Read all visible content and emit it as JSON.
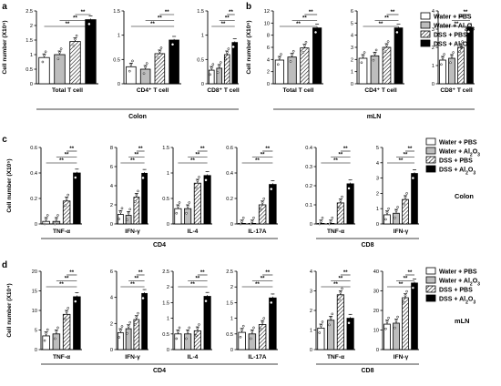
{
  "legend": [
    "Water + PBS",
    "Water + Al2O3",
    "DSS + PBS",
    "DSS + Al2O3"
  ],
  "chart_data": [
    {
      "panel": "a",
      "type": "bar",
      "group_label": "Colon",
      "ylabel": "Cell number (X10⁶)",
      "charts": [
        {
          "title": "",
          "xlabel": "Total T cell",
          "ylim": [
            0,
            2.5
          ],
          "ticks": [
            0.0,
            0.5,
            1.0,
            1.5,
            2.0,
            2.5
          ],
          "series": [
            {
              "values": [
                [
                  0.9,
                  1.0,
                  1.45,
                  2.2
                ]
              ]
            }
          ]
        },
        {
          "title": "",
          "xlabel": "CD4⁺ T cell",
          "ylim": [
            0,
            1.5
          ],
          "ticks": [
            0.0,
            0.5,
            1.0,
            1.5
          ],
          "series": [
            {
              "values": [
                [
                  0.35,
                  0.3,
                  0.62,
                  0.9
                ]
              ]
            }
          ]
        },
        {
          "title": "",
          "xlabel": "CD8⁺ T cell",
          "ylim": [
            0,
            1.5
          ],
          "ticks": [
            0.0,
            0.5,
            1.0,
            1.5
          ],
          "series": [
            {
              "values": [
                [
                  0.28,
                  0.32,
                  0.6,
                  0.85
                ]
              ]
            }
          ]
        }
      ]
    },
    {
      "panel": "b",
      "type": "bar",
      "group_label": "mLN",
      "ylabel": "Cell number (X10⁶)",
      "charts": [
        {
          "title": "",
          "xlabel": "Total T cell",
          "ylim": [
            0,
            12
          ],
          "ticks": [
            0,
            2,
            4,
            6,
            8,
            10,
            12
          ],
          "series": [
            {
              "values": [
                [
                  3.9,
                  4.4,
                  5.9,
                  9.2
                ]
              ]
            }
          ]
        },
        {
          "title": "",
          "xlabel": "CD4⁺ T cell",
          "ylim": [
            0,
            6
          ],
          "ticks": [
            0,
            1,
            2,
            3,
            4,
            5,
            6
          ],
          "series": [
            {
              "values": [
                [
                  2.1,
                  2.3,
                  3.0,
                  4.6
                ]
              ]
            }
          ]
        },
        {
          "title": "",
          "xlabel": "CD8⁺ T cell",
          "ylim": [
            0,
            4
          ],
          "ticks": [
            0,
            1,
            2,
            3,
            4
          ],
          "series": [
            {
              "values": [
                [
                  1.3,
                  1.4,
                  2.0,
                  3.1
                ]
              ]
            }
          ]
        }
      ]
    },
    {
      "panel": "c",
      "type": "bar",
      "group_label": "Colon",
      "ylabel": "Cell number (X10⁵)",
      "groups": [
        {
          "label": "CD4",
          "charts": [
            0,
            3
          ]
        },
        {
          "label": "CD8",
          "charts": [
            4,
            5
          ]
        }
      ],
      "charts": [
        {
          "title": "TNF-α",
          "xlabel": "",
          "ylim": [
            0,
            0.6
          ],
          "ticks": [
            0.0,
            0.2,
            0.4,
            0.6
          ],
          "series": [
            {
              "values": [
                [
                  0.02,
                  0.02,
                  0.18,
                  0.4
                ]
              ]
            }
          ]
        },
        {
          "title": "IFN-γ",
          "xlabel": "",
          "ylim": [
            0,
            8
          ],
          "ticks": [
            0,
            2,
            4,
            6,
            8
          ],
          "series": [
            {
              "values": [
                [
                  1.0,
                  0.9,
                  2.8,
                  5.3
                ]
              ]
            }
          ]
        },
        {
          "title": "IL-4",
          "xlabel": "",
          "ylim": [
            0,
            1.5
          ],
          "ticks": [
            0.0,
            0.5,
            1.0,
            1.5
          ],
          "series": [
            {
              "values": [
                [
                  0.3,
                  0.3,
                  0.8,
                  0.95
                ]
              ]
            }
          ]
        },
        {
          "title": "IL-17A",
          "xlabel": "",
          "ylim": [
            0,
            0.6
          ],
          "ticks": [
            0.0,
            0.2,
            0.4,
            0.6
          ],
          "series": [
            {
              "values": [
                [
                  0.0,
                  0.0,
                  0.15,
                  0.31
                ]
              ]
            }
          ]
        },
        {
          "title": "TNF-α",
          "xlabel": "",
          "ylim": [
            0,
            0.4
          ],
          "ticks": [
            0.0,
            0.1,
            0.2,
            0.3,
            0.4
          ],
          "series": [
            {
              "values": [
                [
                  0.0,
                  0.0,
                  0.11,
                  0.21
                ]
              ]
            }
          ]
        },
        {
          "title": "IFN-γ",
          "xlabel": "",
          "ylim": [
            0,
            5
          ],
          "ticks": [
            0,
            1,
            2,
            3,
            4,
            5
          ],
          "series": [
            {
              "values": [
                [
                  0.6,
                  0.7,
                  1.6,
                  3.3
                ]
              ]
            }
          ]
        }
      ]
    },
    {
      "panel": "d",
      "type": "bar",
      "group_label": "mLN",
      "ylabel": "Cell number (X10⁴)",
      "groups": [
        {
          "label": "CD4",
          "charts": [
            0,
            3
          ]
        },
        {
          "label": "CD8",
          "charts": [
            4,
            5
          ]
        }
      ],
      "charts": [
        {
          "title": "TNF-α",
          "xlabel": "",
          "ylim": [
            0,
            20
          ],
          "ticks": [
            0,
            5,
            10,
            15,
            20
          ],
          "series": [
            {
              "values": [
                [
                  3.5,
                  4.0,
                  9.0,
                  13.5
                ]
              ]
            }
          ]
        },
        {
          "title": "IFN-γ",
          "xlabel": "",
          "ylim": [
            0,
            6
          ],
          "ticks": [
            0,
            2,
            4,
            6
          ],
          "series": [
            {
              "values": [
                [
                  1.3,
                  1.6,
                  2.3,
                  4.3
                ]
              ]
            }
          ]
        },
        {
          "title": "IL-4",
          "xlabel": "",
          "ylim": [
            0,
            2.5
          ],
          "ticks": [
            0.0,
            0.5,
            1.0,
            1.5,
            2.0,
            2.5
          ],
          "series": [
            {
              "values": [
                [
                  0.5,
                  0.5,
                  0.6,
                  1.7
                ]
              ]
            }
          ]
        },
        {
          "title": "IL-17A",
          "xlabel": "",
          "ylim": [
            0,
            2.5
          ],
          "ticks": [
            0.0,
            0.5,
            1.0,
            1.5,
            2.0,
            2.5
          ],
          "series": [
            {
              "values": [
                [
                  0.55,
                  0.5,
                  0.8,
                  1.65
                ]
              ]
            }
          ]
        },
        {
          "title": "TNF-α",
          "xlabel": "",
          "ylim": [
            0,
            4
          ],
          "ticks": [
            0,
            1,
            2,
            3,
            4
          ],
          "series": [
            {
              "values": [
                [
                  1.1,
                  1.5,
                  2.8,
                  1.6
                ]
              ]
            }
          ]
        },
        {
          "title": "IFN-γ",
          "xlabel": "",
          "ylim": [
            0,
            40
          ],
          "ticks": [
            0,
            10,
            20,
            30,
            40
          ],
          "series": [
            {
              "values": [
                [
                  13,
                  13.5,
                  26.5,
                  34
                ]
              ]
            }
          ]
        }
      ]
    }
  ]
}
